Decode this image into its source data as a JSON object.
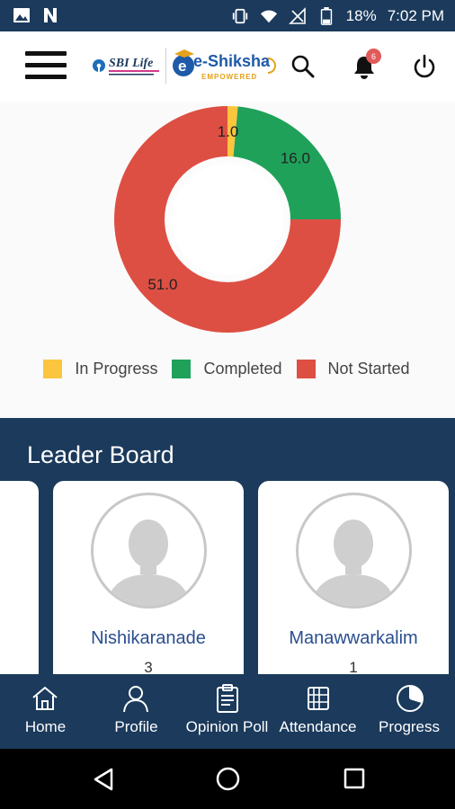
{
  "status_bar": {
    "battery": "18%",
    "time": "7:02 PM",
    "icons": [
      "gallery-icon",
      "netflix-n-icon",
      "vibrate-icon",
      "wifi-icon",
      "no-signal-icon",
      "battery-icon"
    ]
  },
  "header": {
    "brand_logo": "SBI Life",
    "app_logo": "e-Shiksha",
    "app_logo_tagline": "EMPOWERED",
    "notification_count": "6",
    "icons": [
      "menu-icon",
      "search-icon",
      "bell-icon",
      "power-icon"
    ]
  },
  "chart_data": {
    "type": "pie",
    "labels": [
      "In Progress",
      "Completed",
      "Not Started"
    ],
    "values": [
      1.0,
      16.0,
      51.0
    ],
    "value_labels": [
      "1.0",
      "16.0",
      "51.0"
    ],
    "colors": [
      "#fbc63d",
      "#1fa15a",
      "#dd4f43"
    ],
    "donut": true,
    "legend": "bottom"
  },
  "leader_board": {
    "title": "Leader Board",
    "cards": [
      {
        "name": "Nishikaranade",
        "rank": "3"
      },
      {
        "name": "Manawwarkalim",
        "rank": "1"
      }
    ]
  },
  "bottom_nav": {
    "items": [
      {
        "label": "Home",
        "icon": "home-icon"
      },
      {
        "label": "Profile",
        "icon": "profile-icon"
      },
      {
        "label": "Opinion Poll",
        "icon": "clipboard-icon"
      },
      {
        "label": "Attendance",
        "icon": "attendance-icon"
      },
      {
        "label": "Progress",
        "icon": "pie-chart-icon"
      }
    ]
  },
  "android_nav": {
    "icons": [
      "back-icon",
      "home-circle-icon",
      "recents-icon"
    ]
  },
  "theme": {
    "navy": "#1b3a5c",
    "accent_blue": "#2a4e8f"
  }
}
